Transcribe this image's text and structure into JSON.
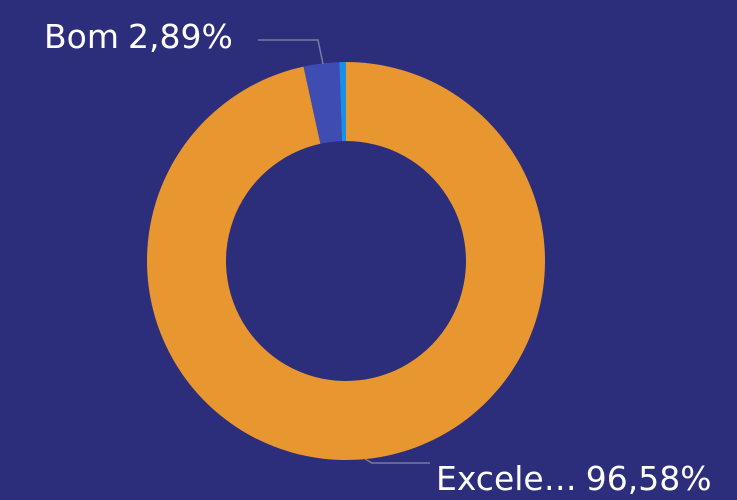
{
  "chart_data": {
    "type": "donut",
    "categories": [
      "Excele…",
      "Bom",
      null
    ],
    "values": [
      96.58,
      2.89,
      0.53
    ],
    "value_labels": [
      "96,58%",
      "2,89%",
      null
    ],
    "colors": [
      "#e8962f",
      "#3f4db3",
      "#1a8fe8"
    ],
    "legend": false
  }
}
